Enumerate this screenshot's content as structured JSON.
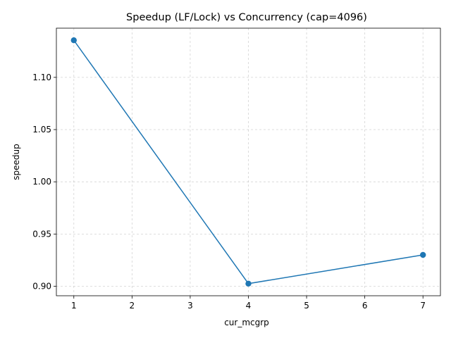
{
  "chart_data": {
    "type": "line",
    "title": "Speedup (LF/Lock) vs Concurrency (cap=4096)",
    "xlabel": "cur_mcgrp",
    "ylabel": "speedup",
    "x": [
      1,
      4,
      7
    ],
    "series": [
      {
        "values": [
          1.1355,
          0.9025,
          0.93
        ],
        "color": "#1f77b4",
        "marker": "circle"
      }
    ],
    "xlim": [
      0.7,
      7.3
    ],
    "ylim": [
      0.8909,
      1.1471
    ],
    "xticks": [
      1,
      2,
      3,
      4,
      5,
      6,
      7
    ],
    "xtick_labels": [
      "1",
      "2",
      "3",
      "4",
      "5",
      "6",
      "7"
    ],
    "yticks": [
      0.9,
      0.95,
      1.0,
      1.05,
      1.1
    ],
    "ytick_labels": [
      "0.90",
      "0.95",
      "1.00",
      "1.05",
      "1.10"
    ],
    "grid": true
  }
}
